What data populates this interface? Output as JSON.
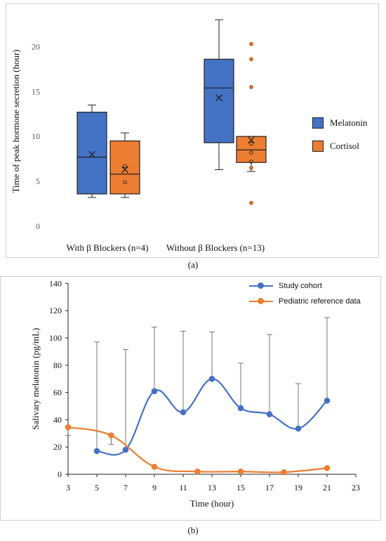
{
  "chart_data": [
    {
      "type": "box",
      "ylabel": "Time of peak hormone secretion (hour)",
      "xlabel": "",
      "ylim": [
        0,
        25
      ],
      "yticks": [
        "0",
        "5",
        "10",
        "15",
        "20"
      ],
      "grid": false,
      "legend_position": "right",
      "categories": [
        "With β  Blockers (n=4)",
        "Without β  Blockers (n=13)"
      ],
      "series": [
        {
          "name": "Melatonin",
          "color": "#4472C4",
          "boxes": [
            {
              "min": 3.2,
              "q1": 3.6,
              "median": 7.7,
              "q3": 12.7,
              "max": 13.5,
              "mean": 8.0,
              "points": []
            },
            {
              "min": 6.3,
              "q1": 9.3,
              "median": 15.4,
              "q3": 18.6,
              "max": 23.0,
              "mean": 14.3,
              "points": []
            }
          ]
        },
        {
          "name": "Cortisol",
          "color": "#ED7D31",
          "boxes": [
            {
              "min": 3.2,
              "q1": 3.6,
              "median": 5.8,
              "q3": 9.5,
              "max": 10.4,
              "mean": 6.3,
              "points": [
                4.9,
                6.7
              ]
            },
            {
              "min": 6.1,
              "q1": 7.1,
              "median": 8.5,
              "q3": 10.0,
              "max": 10.0,
              "mean": 9.6,
              "points": [
                2.6,
                6.5,
                7.2,
                8.2,
                9.2,
                15.5,
                18.6,
                20.3
              ]
            }
          ]
        }
      ]
    },
    {
      "type": "line",
      "xlabel": "Time (hour)",
      "ylabel": "Salivary melatonin (pg/mL)",
      "xlim": [
        3,
        23
      ],
      "ylim": [
        0,
        140
      ],
      "xticks": [
        "3",
        "5",
        "7",
        "9",
        "11",
        "13",
        "15",
        "17",
        "19",
        "21",
        "23"
      ],
      "yticks": [
        "0",
        "20",
        "40",
        "60",
        "80",
        "100",
        "120",
        "140"
      ],
      "grid": false,
      "legend_position": "top-right",
      "series": [
        {
          "name": "Study cohort",
          "color": "#4472C4",
          "x": [
            5,
            7,
            9,
            11,
            13,
            15,
            17,
            19,
            21
          ],
          "y": [
            17,
            18,
            61,
            45.5,
            70,
            48.5,
            44,
            33.5,
            54
          ],
          "error_upper": [
            97,
            91.5,
            108,
            105,
            104.5,
            81.5,
            102.5,
            66.5,
            115
          ]
        },
        {
          "name": "Pediatric reference data",
          "color": "#ED7D31",
          "x": [
            3,
            6,
            9,
            12,
            15,
            18,
            21
          ],
          "y": [
            34.5,
            28.5,
            5.5,
            2,
            2,
            1.5,
            4.5
          ],
          "error_lower": [
            28.5,
            22,
            null,
            null,
            null,
            null,
            null
          ]
        }
      ]
    }
  ],
  "panel_labels": {
    "a": "(a)",
    "b": "(b)"
  }
}
